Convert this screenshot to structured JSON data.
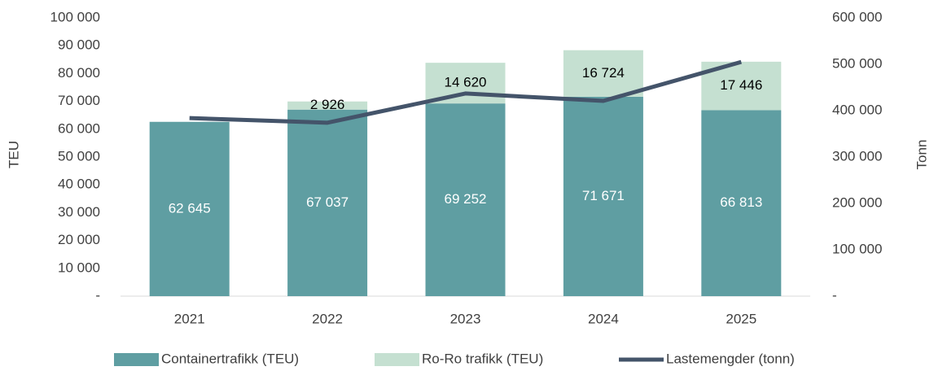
{
  "chart_data": {
    "type": "bar",
    "stacked": true,
    "categories": [
      "2021",
      "2022",
      "2023",
      "2024",
      "2025"
    ],
    "y_label": "TEU",
    "y2_label": "Tonn",
    "ylim": [
      0,
      100000
    ],
    "yticks": [
      {
        "value": 0,
        "label": "-"
      },
      {
        "value": 10000,
        "label": "10 000"
      },
      {
        "value": 20000,
        "label": "20 000"
      },
      {
        "value": 30000,
        "label": "30 000"
      },
      {
        "value": 40000,
        "label": "40 000"
      },
      {
        "value": 50000,
        "label": "50 000"
      },
      {
        "value": 60000,
        "label": "60 000"
      },
      {
        "value": 70000,
        "label": "70 000"
      },
      {
        "value": 80000,
        "label": "80 000"
      },
      {
        "value": 90000,
        "label": "90 000"
      },
      {
        "value": 100000,
        "label": "100 000"
      }
    ],
    "y2lim": [
      0,
      600000
    ],
    "y2ticks": [
      {
        "value": 0,
        "label": "-"
      },
      {
        "value": 100000,
        "label": "100 000"
      },
      {
        "value": 200000,
        "label": "200 000"
      },
      {
        "value": 300000,
        "label": "300 000"
      },
      {
        "value": 400000,
        "label": "400 000"
      },
      {
        "value": 500000,
        "label": "500 000"
      },
      {
        "value": 600000,
        "label": "600 000"
      }
    ],
    "series": [
      {
        "name": "Containertrafikk (TEU)",
        "color": "#5f9ea2",
        "type": "bar",
        "values": [
          62645,
          67037,
          69252,
          71671,
          66813
        ],
        "value_labels": [
          "62 645",
          "67 037",
          "69 252",
          "71 671",
          "66 813"
        ],
        "label_color": "#ffffff"
      },
      {
        "name": "Ro-Ro trafikk (TEU)",
        "color": "#c5e0d1",
        "type": "bar",
        "values": [
          null,
          2926,
          14620,
          16724,
          17446
        ],
        "value_labels": [
          null,
          "2 926",
          "14 620",
          "16 724",
          "17 446"
        ],
        "label_color": "#000000"
      },
      {
        "name": "Lastemengder (tonn)",
        "color": "#44546a",
        "type": "line",
        "axis": "y2",
        "values": [
          384000,
          374000,
          437000,
          421000,
          505000
        ]
      }
    ]
  }
}
